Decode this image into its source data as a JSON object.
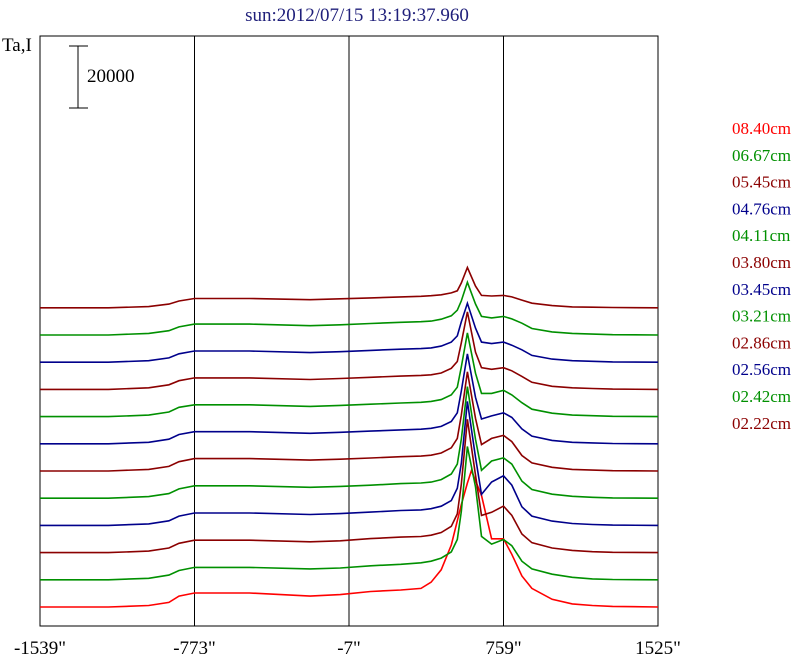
{
  "chart_data": {
    "type": "line",
    "title": "sun:2012/07/15 13:19:37.960",
    "ylabel": "Ta,I",
    "scale_bar_label": "20000",
    "xlim": [
      -1539,
      1525
    ],
    "x_ticks": [
      -1539,
      -773,
      -7,
      759,
      1525
    ],
    "x_tick_labels": [
      "-1539\"",
      "-773\"",
      "-7\"",
      "759\"",
      "1525\""
    ],
    "grid": "vertical lines at interior ticks",
    "legend_position": "right",
    "series": [
      {
        "name": "08.40cm",
        "color": "#ff0000",
        "offset": 0,
        "x": [
          -1539,
          -1200,
          -1000,
          -900,
          -850,
          -773,
          -500,
          -200,
          -50,
          100,
          250,
          350,
          400,
          450,
          500,
          550,
          580,
          600,
          650,
          700,
          759,
          800,
          850,
          900,
          1000,
          1100,
          1200,
          1300,
          1525
        ],
        "y": [
          0,
          0,
          500,
          1500,
          3500,
          4500,
          4500,
          3500,
          4000,
          5000,
          5500,
          6000,
          8000,
          12000,
          20000,
          33000,
          40000,
          44000,
          36000,
          22000,
          22000,
          17000,
          10000,
          6000,
          2500,
          1000,
          500,
          200,
          0
        ]
      },
      {
        "name": "06.67cm",
        "color": "#009000",
        "offset": 1,
        "x": [
          -1539,
          -1200,
          -1000,
          -900,
          -850,
          -773,
          -500,
          -200,
          -50,
          100,
          250,
          350,
          400,
          450,
          500,
          530,
          550,
          580,
          620,
          650,
          700,
          759,
          800,
          850,
          900,
          1000,
          1100,
          1200,
          1300,
          1525
        ],
        "y": [
          0,
          0,
          500,
          1500,
          3000,
          4000,
          4000,
          3500,
          3800,
          4500,
          5000,
          5500,
          6000,
          7000,
          9000,
          13000,
          22000,
          43000,
          30000,
          14000,
          11500,
          13000,
          11000,
          6000,
          3500,
          1800,
          800,
          300,
          100,
          0
        ]
      },
      {
        "name": "05.45cm",
        "color": "#8b0000",
        "offset": 2,
        "x": [
          -1539,
          -1200,
          -1000,
          -900,
          -850,
          -773,
          -500,
          -200,
          -50,
          100,
          250,
          350,
          400,
          450,
          500,
          530,
          550,
          580,
          620,
          650,
          700,
          759,
          800,
          850,
          900,
          1000,
          1100,
          1200,
          1300,
          1525
        ],
        "y": [
          0,
          0,
          500,
          1500,
          3000,
          4000,
          4000,
          3500,
          3800,
          4500,
          5000,
          5200,
          5600,
          6500,
          8500,
          12500,
          22000,
          43000,
          25000,
          12000,
          13000,
          15000,
          12000,
          6000,
          3200,
          1500,
          700,
          300,
          100,
          0
        ]
      },
      {
        "name": "04.76cm",
        "color": "#00008b",
        "offset": 3,
        "x": [
          -1539,
          -1200,
          -1000,
          -900,
          -850,
          -773,
          -500,
          -200,
          -50,
          100,
          250,
          350,
          400,
          450,
          500,
          530,
          550,
          580,
          620,
          650,
          700,
          759,
          800,
          850,
          900,
          1000,
          1100,
          1200,
          1300,
          1525
        ],
        "y": [
          0,
          0,
          500,
          1500,
          3000,
          4000,
          4000,
          3500,
          3800,
          4300,
          4800,
          5000,
          5400,
          6200,
          8000,
          12000,
          20000,
          40000,
          22000,
          10000,
          14000,
          16000,
          13000,
          6000,
          3000,
          1400,
          600,
          300,
          100,
          0
        ]
      },
      {
        "name": "04.11cm",
        "color": "#009000",
        "offset": 4,
        "x": [
          -1539,
          -1200,
          -1000,
          -900,
          -850,
          -773,
          -500,
          -200,
          -50,
          100,
          250,
          350,
          400,
          450,
          500,
          530,
          550,
          580,
          620,
          650,
          700,
          759,
          800,
          850,
          900,
          1000,
          1100,
          1200,
          1300,
          1525
        ],
        "y": [
          0,
          0,
          500,
          1500,
          3000,
          4000,
          4000,
          3500,
          3800,
          4200,
          4700,
          4900,
          5200,
          6000,
          7800,
          11000,
          19000,
          36000,
          19000,
          9000,
          12000,
          13000,
          11000,
          5500,
          2800,
          1300,
          600,
          300,
          100,
          0
        ]
      },
      {
        "name": "03.80cm",
        "color": "#8b0000",
        "offset": 5,
        "x": [
          -1539,
          -1200,
          -1000,
          -900,
          -850,
          -773,
          -500,
          -200,
          -50,
          100,
          250,
          350,
          400,
          450,
          500,
          530,
          550,
          580,
          620,
          650,
          700,
          759,
          800,
          850,
          900,
          1000,
          1100,
          1200,
          1300,
          1525
        ],
        "y": [
          0,
          0,
          500,
          1500,
          3000,
          4000,
          4000,
          3500,
          3800,
          4200,
          4600,
          4800,
          5100,
          5800,
          7500,
          10500,
          18000,
          32000,
          17000,
          8500,
          10500,
          11500,
          9500,
          5000,
          2600,
          1200,
          500,
          300,
          100,
          0
        ]
      },
      {
        "name": "03.45cm",
        "color": "#00008b",
        "offset": 6,
        "x": [
          -1539,
          -1200,
          -1000,
          -900,
          -850,
          -773,
          -500,
          -200,
          -50,
          100,
          250,
          350,
          400,
          450,
          500,
          530,
          550,
          580,
          620,
          650,
          700,
          759,
          800,
          850,
          900,
          1000,
          1100,
          1200,
          1300,
          1525
        ],
        "y": [
          0,
          0,
          500,
          1500,
          3000,
          3900,
          3900,
          3400,
          3700,
          4100,
          4500,
          4700,
          5000,
          5600,
          7200,
          10000,
          17000,
          29000,
          15000,
          8000,
          9000,
          10000,
          8500,
          4800,
          2500,
          1100,
          500,
          300,
          100,
          0
        ]
      },
      {
        "name": "03.21cm",
        "color": "#009000",
        "offset": 7,
        "x": [
          -1539,
          -1200,
          -1000,
          -900,
          -850,
          -773,
          -500,
          -200,
          -50,
          100,
          250,
          350,
          400,
          450,
          500,
          530,
          550,
          580,
          620,
          650,
          700,
          759,
          800,
          850,
          900,
          1000,
          1100,
          1200,
          1300,
          1525
        ],
        "y": [
          0,
          0,
          500,
          1500,
          3000,
          3800,
          3800,
          3300,
          3600,
          4000,
          4400,
          4600,
          4900,
          5500,
          7000,
          9500,
          16000,
          27000,
          14000,
          7500,
          7500,
          8500,
          7000,
          4500,
          2400,
          1100,
          500,
          300,
          100,
          0
        ]
      },
      {
        "name": "02.86cm",
        "color": "#8b0000",
        "offset": 8,
        "x": [
          -1539,
          -1200,
          -1000,
          -900,
          -850,
          -773,
          -500,
          -200,
          -50,
          100,
          250,
          350,
          400,
          450,
          500,
          530,
          550,
          580,
          620,
          650,
          700,
          759,
          800,
          850,
          900,
          1000,
          1100,
          1200,
          1300,
          1525
        ],
        "y": [
          0,
          0,
          500,
          1500,
          2800,
          3700,
          3700,
          3200,
          3500,
          3900,
          4300,
          4500,
          4700,
          5300,
          6800,
          9000,
          15000,
          25000,
          12000,
          7000,
          6500,
          7000,
          6000,
          4200,
          2300,
          1000,
          500,
          300,
          100,
          0
        ]
      },
      {
        "name": "02.56cm",
        "color": "#00008b",
        "offset": 9,
        "x": [
          -1539,
          -1200,
          -1000,
          -900,
          -850,
          -773,
          -500,
          -200,
          -50,
          100,
          250,
          350,
          400,
          450,
          500,
          530,
          550,
          580,
          620,
          650,
          700,
          759,
          800,
          850,
          900,
          1000,
          1100,
          1200,
          1300,
          1525
        ],
        "y": [
          0,
          0,
          500,
          1400,
          2700,
          3600,
          3600,
          3100,
          3400,
          3800,
          4200,
          4400,
          4600,
          5200,
          6500,
          8500,
          13000,
          19000,
          11000,
          6500,
          6000,
          6500,
          5500,
          4000,
          2200,
          1000,
          500,
          300,
          100,
          0
        ]
      },
      {
        "name": "02.42cm",
        "color": "#009000",
        "offset": 10,
        "x": [
          -1539,
          -1200,
          -1000,
          -900,
          -850,
          -773,
          -500,
          -200,
          -50,
          100,
          250,
          350,
          400,
          450,
          500,
          530,
          550,
          580,
          620,
          650,
          700,
          759,
          800,
          850,
          900,
          1000,
          1100,
          1200,
          1300,
          1525
        ],
        "y": [
          0,
          0,
          500,
          1400,
          2600,
          3500,
          3500,
          3000,
          3300,
          3700,
          4100,
          4300,
          4500,
          5100,
          6200,
          8000,
          11000,
          17000,
          10000,
          6000,
          5500,
          6000,
          5200,
          3800,
          2100,
          1000,
          500,
          300,
          100,
          0
        ]
      },
      {
        "name": "02.22cm",
        "color": "#8b0000",
        "offset": 11,
        "x": [
          -1539,
          -1200,
          -1000,
          -900,
          -850,
          -773,
          -500,
          -200,
          -50,
          100,
          250,
          350,
          400,
          450,
          500,
          530,
          550,
          580,
          620,
          650,
          700,
          759,
          800,
          850,
          900,
          1000,
          1100,
          1200,
          1300,
          1525
        ],
        "y": [
          0,
          0,
          400,
          1200,
          2200,
          3000,
          3000,
          2600,
          2900,
          3200,
          3500,
          3700,
          3900,
          4200,
          4800,
          5500,
          8000,
          13000,
          7000,
          4000,
          3800,
          4000,
          3500,
          2500,
          1500,
          700,
          300,
          200,
          100,
          0
        ]
      }
    ]
  }
}
